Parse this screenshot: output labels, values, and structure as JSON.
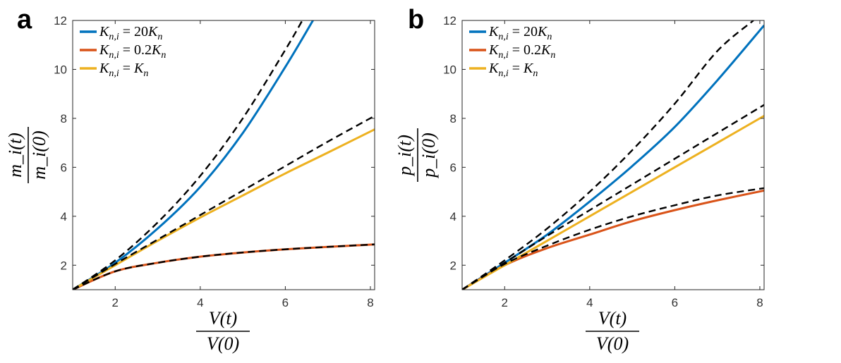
{
  "chart_data": [
    {
      "panel": "a",
      "type": "line",
      "xlim": [
        1,
        8.1
      ],
      "ylim": [
        1,
        12
      ],
      "xticks": [
        2,
        4,
        6,
        8
      ],
      "yticks": [
        2,
        4,
        6,
        8,
        10,
        12
      ],
      "xlabel": "V(t)/V(0)",
      "ylabel": "m_i(t)/m_i(0)",
      "ylabel_num": "m_i(t)",
      "ylabel_den": "m_i(0)",
      "xlabel_num": "V(t)",
      "xlabel_den": "V(0)",
      "legend_position": "top-left",
      "series": [
        {
          "name": "K_{n,i} = 20K_n",
          "color": "#0072BD",
          "style": "solid",
          "x": [
            1,
            2,
            3,
            4,
            5,
            6,
            6.65
          ],
          "y": [
            1,
            2.1,
            3.5,
            5.2,
            7.4,
            10.1,
            12
          ]
        },
        {
          "name": "K_{n,i} = 0.2K_n",
          "color": "#D95319",
          "style": "solid",
          "x": [
            1,
            2,
            3,
            4,
            5,
            6,
            7,
            8.1
          ],
          "y": [
            1,
            1.75,
            2.1,
            2.35,
            2.52,
            2.65,
            2.75,
            2.85
          ]
        },
        {
          "name": "K_{n,i} = K_n",
          "color": "#EDB120",
          "style": "solid",
          "x": [
            1,
            2,
            3,
            4,
            5,
            6,
            7,
            8.1
          ],
          "y": [
            1,
            2.0,
            3.0,
            3.95,
            4.85,
            5.75,
            6.6,
            7.55
          ]
        },
        {
          "color": "#000000",
          "style": "dashed",
          "x": [
            1,
            2,
            3,
            4,
            5,
            6,
            6.4
          ],
          "y": [
            1,
            2.2,
            3.75,
            5.65,
            8.0,
            10.8,
            12
          ]
        },
        {
          "color": "#000000",
          "style": "dashed",
          "x": [
            1,
            2,
            3,
            4,
            5,
            6,
            7,
            8.1
          ],
          "y": [
            1,
            2.05,
            3.05,
            4.05,
            5.05,
            6.05,
            7.05,
            8.1
          ]
        },
        {
          "color": "#000000",
          "style": "dashed",
          "x": [
            1,
            2,
            3,
            4,
            5,
            6,
            7,
            8.1
          ],
          "y": [
            1,
            1.75,
            2.1,
            2.35,
            2.52,
            2.65,
            2.75,
            2.85
          ]
        }
      ]
    },
    {
      "panel": "b",
      "type": "line",
      "xlim": [
        1,
        8.1
      ],
      "ylim": [
        1,
        12
      ],
      "xticks": [
        2,
        4,
        6,
        8
      ],
      "yticks": [
        2,
        4,
        6,
        8,
        10,
        12
      ],
      "xlabel": "V(t)/V(0)",
      "ylabel": "p_i(t)/p_i(0)",
      "ylabel_num": "p_i(t)",
      "ylabel_den": "p_i(0)",
      "xlabel_num": "V(t)",
      "xlabel_den": "V(0)",
      "legend_position": "top-left",
      "series": [
        {
          "name": "K_{n,i} = 20K_n",
          "color": "#0072BD",
          "style": "solid",
          "x": [
            1,
            2,
            3,
            4,
            5,
            6,
            7,
            8.1
          ],
          "y": [
            1,
            2.1,
            3.25,
            4.6,
            6.05,
            7.65,
            9.55,
            11.8
          ]
        },
        {
          "name": "K_{n,i} = 0.2K_n",
          "color": "#D95319",
          "style": "solid",
          "x": [
            1,
            2,
            3,
            4,
            5,
            6,
            7,
            8.1
          ],
          "y": [
            1,
            2.0,
            2.7,
            3.25,
            3.8,
            4.25,
            4.65,
            5.05
          ]
        },
        {
          "name": "K_{n,i} = K_n",
          "color": "#EDB120",
          "style": "solid",
          "x": [
            1,
            2,
            3,
            4,
            5,
            6,
            7,
            8.1
          ],
          "y": [
            1,
            2.0,
            3.0,
            4.0,
            5.0,
            6.0,
            7.0,
            8.1
          ]
        },
        {
          "color": "#000000",
          "style": "dashed",
          "x": [
            1,
            2,
            3,
            4,
            5,
            6,
            7,
            7.85
          ],
          "y": [
            1,
            2.2,
            3.5,
            5.0,
            6.7,
            8.6,
            10.75,
            12
          ]
        },
        {
          "color": "#000000",
          "style": "dashed",
          "x": [
            1,
            2,
            3,
            4,
            5,
            6,
            7,
            8.1
          ],
          "y": [
            1,
            2.1,
            3.2,
            4.25,
            5.3,
            6.35,
            7.4,
            8.55
          ]
        },
        {
          "color": "#000000",
          "style": "dashed",
          "x": [
            1,
            2,
            3,
            4,
            5,
            6,
            7,
            8.1
          ],
          "y": [
            1,
            2.05,
            2.8,
            3.45,
            4.0,
            4.45,
            4.85,
            5.15
          ]
        }
      ]
    }
  ],
  "panels": {
    "a": {
      "letter": "a",
      "legend": [
        {
          "lhs": "K",
          "lhs_sub": "n,i",
          "eq": " = 20",
          "rhs": "K",
          "rhs_sub": "n"
        },
        {
          "lhs": "K",
          "lhs_sub": "n,i",
          "eq": " = 0.2",
          "rhs": "K",
          "rhs_sub": "n"
        },
        {
          "lhs": "K",
          "lhs_sub": "n,i",
          "eq": " = ",
          "rhs": "K",
          "rhs_sub": "n"
        }
      ]
    },
    "b": {
      "letter": "b",
      "legend": [
        {
          "lhs": "K",
          "lhs_sub": "n,i",
          "eq": " = 20",
          "rhs": "K",
          "rhs_sub": "n"
        },
        {
          "lhs": "K",
          "lhs_sub": "n,i",
          "eq": " = 0.2",
          "rhs": "K",
          "rhs_sub": "n"
        },
        {
          "lhs": "K",
          "lhs_sub": "n,i",
          "eq": " = ",
          "rhs": "K",
          "rhs_sub": "n"
        }
      ]
    }
  }
}
